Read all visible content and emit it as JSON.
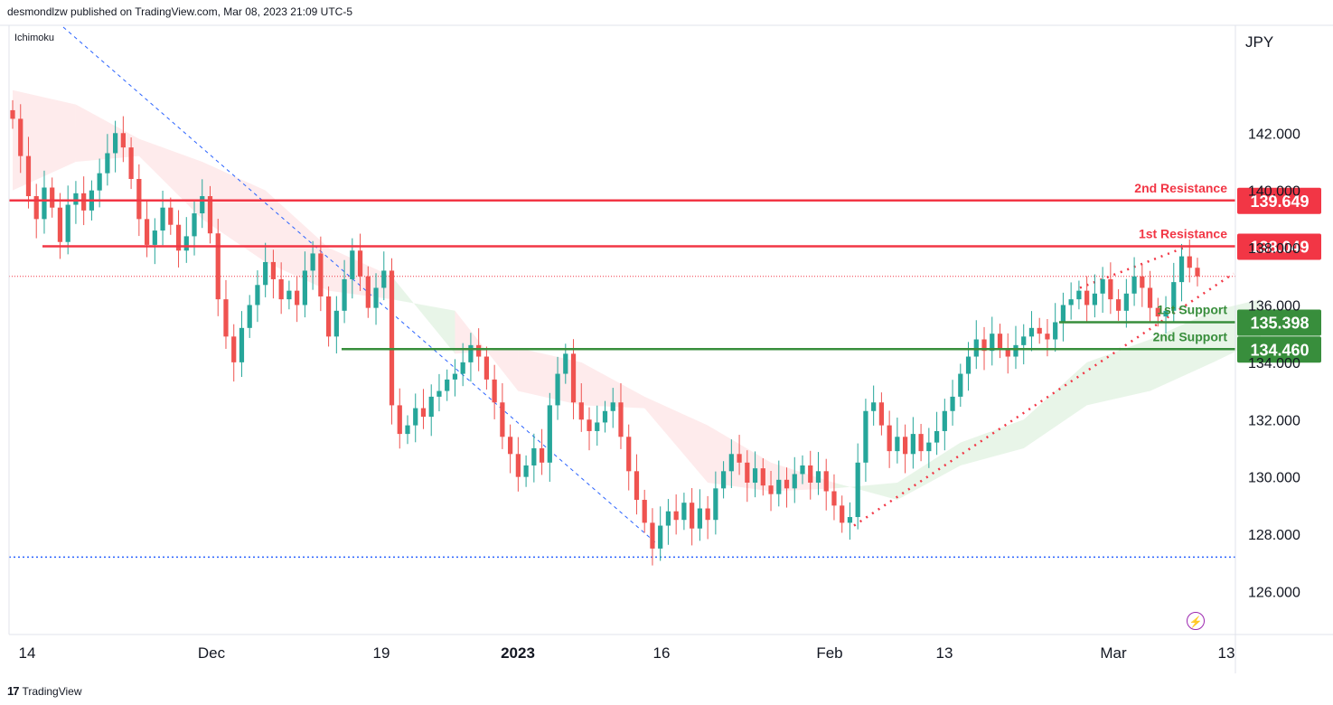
{
  "header": {
    "published_by": "desmondlzw published on TradingView.com, Mar 08, 2023 21:09 UTC-5",
    "indicator": "Ichimoku"
  },
  "footer": {
    "brand": "TradingView",
    "logo_glyph": "17"
  },
  "chart_data": {
    "type": "candlestick",
    "currency_label": "JPY",
    "ylim": [
      124.5,
      145.7
    ],
    "y_ticks": [
      126,
      128,
      130,
      132,
      134,
      136,
      138,
      140,
      142
    ],
    "y_tick_labels": [
      "126.000",
      "128.000",
      "130.000",
      "132.000",
      "134.000",
      "136.000",
      "138.000",
      "140.000",
      "142.000"
    ],
    "x_ticks": [
      {
        "label": "14",
        "bold": false
      },
      {
        "label": "Dec",
        "bold": false
      },
      {
        "label": "19",
        "bold": false
      },
      {
        "label": "2023",
        "bold": true
      },
      {
        "label": "16",
        "bold": false
      },
      {
        "label": "Feb",
        "bold": false
      },
      {
        "label": "13",
        "bold": false
      },
      {
        "label": "Mar",
        "bold": false
      },
      {
        "label": "13",
        "bold": false
      }
    ],
    "levels": [
      {
        "name": "2nd Resistance",
        "value": 139.649,
        "label": "139.649",
        "color": "#f23645"
      },
      {
        "name": "1st Resistance",
        "value": 138.049,
        "label": "138.049",
        "color": "#f23645"
      },
      {
        "name": "1st Support",
        "value": 135.398,
        "label": "135.398",
        "color": "#388e3c"
      },
      {
        "name": "2nd Support",
        "value": 134.46,
        "label": "134.460",
        "color": "#388e3c"
      }
    ],
    "current_price": 137.0,
    "low_line": 127.2,
    "closes": [
      142.5,
      141.2,
      139.8,
      139.0,
      140.1,
      139.4,
      138.2,
      139.5,
      139.9,
      139.3,
      140.0,
      140.6,
      141.3,
      142.0,
      141.5,
      140.4,
      139.0,
      138.1,
      138.6,
      139.4,
      138.8,
      137.9,
      138.4,
      139.2,
      139.8,
      138.5,
      136.2,
      134.9,
      134.0,
      135.2,
      136.0,
      136.7,
      137.5,
      136.9,
      136.2,
      136.5,
      136.0,
      137.2,
      137.8,
      136.3,
      134.9,
      135.8,
      136.9,
      137.9,
      137.0,
      135.9,
      136.6,
      137.2,
      132.5,
      131.5,
      131.8,
      132.4,
      132.1,
      132.8,
      133.0,
      133.4,
      133.6,
      134.0,
      134.6,
      134.2,
      133.4,
      132.6,
      131.4,
      130.8,
      130.0,
      130.4,
      131.0,
      130.5,
      132.5,
      133.6,
      134.3,
      132.6,
      132.0,
      131.6,
      131.9,
      132.3,
      132.6,
      131.4,
      130.2,
      129.2,
      128.4,
      127.5,
      128.3,
      128.8,
      128.5,
      129.1,
      128.2,
      128.9,
      128.5,
      129.6,
      130.2,
      130.8,
      130.5,
      129.8,
      130.3,
      129.7,
      129.4,
      129.9,
      129.6,
      130.1,
      130.4,
      129.8,
      130.2,
      129.5,
      129.0,
      128.4,
      128.6,
      130.5,
      132.3,
      132.6,
      131.8,
      130.9,
      131.4,
      130.8,
      131.5,
      130.9,
      131.2,
      131.6,
      132.3,
      132.8,
      133.6,
      134.2,
      134.8,
      134.4,
      135.0,
      134.5,
      134.2,
      134.6,
      134.9,
      135.2,
      135.0,
      134.8,
      135.4,
      136.0,
      136.2,
      136.5,
      136.0,
      136.4,
      136.9,
      136.2,
      135.8,
      136.4,
      137.0,
      136.6,
      135.9,
      135.6,
      135.8,
      136.8,
      137.7,
      137.3,
      137.0
    ],
    "cloud_points": [
      {
        "x": 0,
        "a": 143.5,
        "b": 140.0
      },
      {
        "x": 8,
        "a": 143.0,
        "b": 141.0
      },
      {
        "x": 16,
        "a": 141.8,
        "b": 141.2
      },
      {
        "x": 24,
        "a": 141.0,
        "b": 139.0
      },
      {
        "x": 32,
        "a": 140.0,
        "b": 137.5
      },
      {
        "x": 40,
        "a": 138.0,
        "b": 136.5
      },
      {
        "x": 48,
        "a": 137.0,
        "b": 136.2
      },
      {
        "x": 56,
        "a": 134.3,
        "b": 135.8
      },
      {
        "x": 64,
        "a": 134.5,
        "b": 133.0
      },
      {
        "x": 72,
        "a": 134.0,
        "b": 132.5
      },
      {
        "x": 80,
        "a": 132.8,
        "b": 132.4
      },
      {
        "x": 88,
        "a": 131.8,
        "b": 129.8
      },
      {
        "x": 96,
        "a": 130.5,
        "b": 129.5
      },
      {
        "x": 104,
        "a": 129.8,
        "b": 129.6
      },
      {
        "x": 112,
        "a": 129.2,
        "b": 129.8
      },
      {
        "x": 120,
        "a": 130.4,
        "b": 131.2
      },
      {
        "x": 128,
        "a": 131.0,
        "b": 132.0
      },
      {
        "x": 136,
        "a": 132.5,
        "b": 134.0
      },
      {
        "x": 144,
        "a": 133.0,
        "b": 134.8
      },
      {
        "x": 152,
        "a": 134.0,
        "b": 135.8
      },
      {
        "x": 158,
        "a": 134.8,
        "b": 136.2
      }
    ]
  }
}
